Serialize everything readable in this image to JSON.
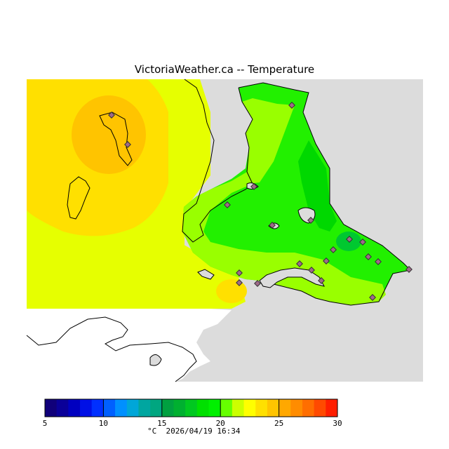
{
  "title": "VictoriaWeather.ca -- Temperature",
  "footer": {
    "unit": "°C",
    "datetime": "2026/04/19 16:34"
  },
  "legend": {
    "min": 5,
    "max": 30,
    "step": 1,
    "tick_labels": [
      "5",
      "10",
      "15",
      "20",
      "25",
      "30"
    ],
    "colors": [
      "#10007a",
      "#0a0099",
      "#0000c0",
      "#0010e6",
      "#0030ff",
      "#0060ff",
      "#0090ff",
      "#00a6d8",
      "#00a6a0",
      "#00a680",
      "#00a040",
      "#00b030",
      "#00c820",
      "#00e000",
      "#00f000",
      "#66ff00",
      "#ccff00",
      "#ffff00",
      "#ffe000",
      "#ffc400",
      "#ffa800",
      "#ff8c00",
      "#ff6e00",
      "#ff4a00",
      "#ff1e00"
    ]
  },
  "map": {
    "temperature_colors": {
      "warm_core": "#ffc400",
      "warm": "#ffe000",
      "mild": "#e6ff00",
      "cool_light": "#99ff00",
      "cool": "#22f000",
      "cooler": "#00d800",
      "coolest": "#00c830",
      "no_data": "#dcdcdc"
    },
    "station_count": 27
  }
}
